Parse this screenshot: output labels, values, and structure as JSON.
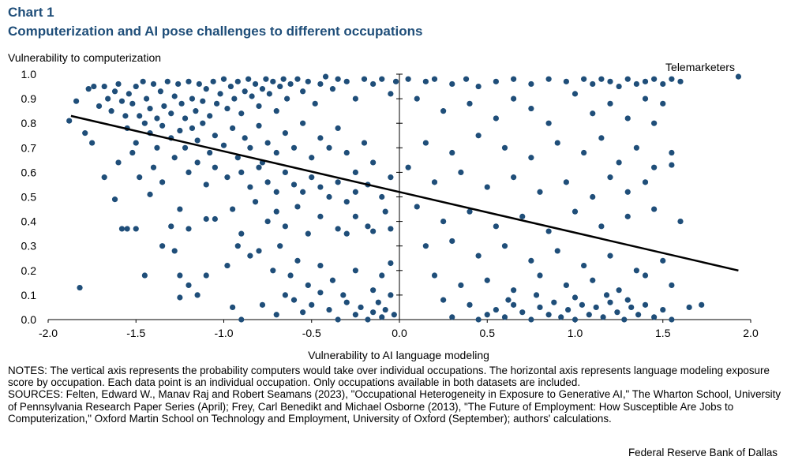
{
  "header": {
    "chart_number": "Chart 1",
    "title": "Computerization and AI pose challenges to different occupations"
  },
  "chart_data": {
    "type": "scatter",
    "ylabel": "Vulnerability  to computerization",
    "xlabel": "Vulnerability  to AI language modeling",
    "xlim": [
      -2.0,
      2.0
    ],
    "ylim": [
      0.0,
      1.0
    ],
    "xticks": [
      "-2.0",
      "-1.5",
      "-1.0",
      "-0.5",
      "0.0",
      "0.5",
      "1.0",
      "1.5",
      "2.0"
    ],
    "yticks": [
      "0.0",
      "0.1",
      "0.2",
      "0.3",
      "0.4",
      "0.5",
      "0.6",
      "0.7",
      "0.8",
      "0.9",
      "1.0"
    ],
    "annotation": {
      "label": "Telemarketers",
      "x": 1.93,
      "y": 0.99
    },
    "trendline": {
      "x": [
        -1.87,
        1.93
      ],
      "y": [
        0.83,
        0.2
      ]
    },
    "point_color": "#1f4e79",
    "points": [
      [
        -1.88,
        0.81
      ],
      [
        -1.84,
        0.89
      ],
      [
        -1.79,
        0.76
      ],
      [
        -1.77,
        0.94
      ],
      [
        -1.74,
        0.95
      ],
      [
        -1.71,
        0.87
      ],
      [
        -1.68,
        0.95
      ],
      [
        -1.66,
        0.9
      ],
      [
        -1.64,
        0.85
      ],
      [
        -1.62,
        0.93
      ],
      [
        -1.6,
        0.96
      ],
      [
        -1.58,
        0.89
      ],
      [
        -1.56,
        0.83
      ],
      [
        -1.54,
        0.92
      ],
      [
        -1.52,
        0.88
      ],
      [
        -1.5,
        0.95
      ],
      [
        -1.48,
        0.83
      ],
      [
        -1.46,
        0.97
      ],
      [
        -1.44,
        0.9
      ],
      [
        -1.42,
        0.86
      ],
      [
        -1.4,
        0.96
      ],
      [
        -1.38,
        0.82
      ],
      [
        -1.36,
        0.93
      ],
      [
        -1.34,
        0.87
      ],
      [
        -1.32,
        0.97
      ],
      [
        -1.3,
        0.84
      ],
      [
        -1.28,
        0.91
      ],
      [
        -1.26,
        0.96
      ],
      [
        -1.24,
        0.88
      ],
      [
        -1.22,
        0.82
      ],
      [
        -1.2,
        0.97
      ],
      [
        -1.18,
        0.9
      ],
      [
        -1.16,
        0.85
      ],
      [
        -1.14,
        0.96
      ],
      [
        -1.12,
        0.89
      ],
      [
        -1.1,
        0.94
      ],
      [
        -1.08,
        0.83
      ],
      [
        -1.06,
        0.97
      ],
      [
        -1.04,
        0.88
      ],
      [
        -1.02,
        0.92
      ],
      [
        -1.0,
        0.98
      ],
      [
        -0.98,
        0.86
      ],
      [
        -0.96,
        0.95
      ],
      [
        -0.94,
        0.9
      ],
      [
        -0.92,
        0.97
      ],
      [
        -0.9,
        0.84
      ],
      [
        -0.88,
        0.93
      ],
      [
        -0.86,
        0.98
      ],
      [
        -0.84,
        0.91
      ],
      [
        -0.82,
        0.96
      ],
      [
        -0.8,
        0.87
      ],
      [
        -0.78,
        0.94
      ],
      [
        -0.76,
        0.98
      ],
      [
        -0.74,
        0.92
      ],
      [
        -0.72,
        0.97
      ],
      [
        -0.7,
        0.85
      ],
      [
        -0.68,
        0.95
      ],
      [
        -0.66,
        0.98
      ],
      [
        -0.64,
        0.9
      ],
      [
        -0.62,
        0.96
      ],
      [
        -0.58,
        0.98
      ],
      [
        -0.55,
        0.93
      ],
      [
        -0.52,
        0.97
      ],
      [
        -0.48,
        0.88
      ],
      [
        -0.45,
        0.96
      ],
      [
        -0.42,
        0.99
      ],
      [
        -0.38,
        0.94
      ],
      [
        -0.35,
        0.98
      ],
      [
        -0.3,
        0.97
      ],
      [
        -0.25,
        0.9
      ],
      [
        -0.2,
        0.98
      ],
      [
        -0.15,
        0.96
      ],
      [
        -0.1,
        0.98
      ],
      [
        -0.05,
        0.92
      ],
      [
        -0.02,
        0.97
      ],
      [
        -1.55,
        0.78
      ],
      [
        -1.5,
        0.72
      ],
      [
        -1.45,
        0.8
      ],
      [
        -1.42,
        0.76
      ],
      [
        -1.38,
        0.7
      ],
      [
        -1.35,
        0.79
      ],
      [
        -1.3,
        0.74
      ],
      [
        -1.25,
        0.77
      ],
      [
        -1.22,
        0.7
      ],
      [
        -1.18,
        0.78
      ],
      [
        -1.15,
        0.73
      ],
      [
        -1.12,
        0.8
      ],
      [
        -1.08,
        0.68
      ],
      [
        -1.05,
        0.75
      ],
      [
        -1.0,
        0.71
      ],
      [
        -0.95,
        0.78
      ],
      [
        -0.92,
        0.66
      ],
      [
        -0.88,
        0.74
      ],
      [
        -0.85,
        0.7
      ],
      [
        -0.8,
        0.79
      ],
      [
        -0.78,
        0.64
      ],
      [
        -0.75,
        0.72
      ],
      [
        -0.7,
        0.68
      ],
      [
        -0.65,
        0.76
      ],
      [
        -0.6,
        0.7
      ],
      [
        -0.55,
        0.8
      ],
      [
        -0.5,
        0.66
      ],
      [
        -0.45,
        0.74
      ],
      [
        -0.4,
        0.7
      ],
      [
        -0.35,
        0.78
      ],
      [
        -0.3,
        0.68
      ],
      [
        -0.25,
        0.6
      ],
      [
        -0.2,
        0.72
      ],
      [
        -0.15,
        0.64
      ],
      [
        -1.75,
        0.72
      ],
      [
        -1.68,
        0.58
      ],
      [
        -1.6,
        0.64
      ],
      [
        -1.52,
        0.68
      ],
      [
        -1.48,
        0.58
      ],
      [
        -1.4,
        0.62
      ],
      [
        -1.35,
        0.56
      ],
      [
        -1.28,
        0.66
      ],
      [
        -1.2,
        0.6
      ],
      [
        -1.15,
        0.64
      ],
      [
        -1.1,
        0.55
      ],
      [
        -1.05,
        0.62
      ],
      [
        -0.98,
        0.58
      ],
      [
        -0.9,
        0.6
      ],
      [
        -0.85,
        0.54
      ],
      [
        -0.8,
        0.62
      ],
      [
        -0.75,
        0.56
      ],
      [
        -0.7,
        0.52
      ],
      [
        -0.65,
        0.6
      ],
      [
        -0.6,
        0.55
      ],
      [
        -0.55,
        0.52
      ],
      [
        -0.5,
        0.58
      ],
      [
        -0.45,
        0.54
      ],
      [
        -0.4,
        0.5
      ],
      [
        -0.35,
        0.56
      ],
      [
        -0.3,
        0.48
      ],
      [
        -0.25,
        0.52
      ],
      [
        -0.18,
        0.55
      ],
      [
        -0.1,
        0.5
      ],
      [
        -0.05,
        0.58
      ],
      [
        -1.62,
        0.49
      ],
      [
        -1.58,
        0.37
      ],
      [
        -1.55,
        0.37
      ],
      [
        -1.5,
        0.37
      ],
      [
        -1.42,
        0.51
      ],
      [
        -1.3,
        0.38
      ],
      [
        -1.25,
        0.45
      ],
      [
        -1.2,
        0.37
      ],
      [
        -1.1,
        0.41
      ],
      [
        -1.05,
        0.41
      ],
      [
        -0.95,
        0.45
      ],
      [
        -0.9,
        0.35
      ],
      [
        -0.82,
        0.48
      ],
      [
        -0.75,
        0.4
      ],
      [
        -0.7,
        0.44
      ],
      [
        -0.65,
        0.38
      ],
      [
        -0.58,
        0.46
      ],
      [
        -0.52,
        0.35
      ],
      [
        -0.45,
        0.42
      ],
      [
        -0.35,
        0.37
      ],
      [
        -0.3,
        0.35
      ],
      [
        -0.25,
        0.42
      ],
      [
        -0.18,
        0.38
      ],
      [
        -0.15,
        0.36
      ],
      [
        -0.08,
        0.44
      ],
      [
        -0.05,
        0.37
      ],
      [
        -1.82,
        0.13
      ],
      [
        -1.45,
        0.18
      ],
      [
        -1.35,
        0.3
      ],
      [
        -1.28,
        0.28
      ],
      [
        -1.25,
        0.18
      ],
      [
        -1.2,
        0.14
      ],
      [
        -1.15,
        0.1
      ],
      [
        -1.1,
        0.18
      ],
      [
        -0.98,
        0.22
      ],
      [
        -0.92,
        0.3
      ],
      [
        -0.85,
        0.26
      ],
      [
        -0.8,
        0.28
      ],
      [
        -0.72,
        0.2
      ],
      [
        -0.68,
        0.3
      ],
      [
        -0.62,
        0.18
      ],
      [
        -0.58,
        0.24
      ],
      [
        -0.52,
        0.14
      ],
      [
        -0.45,
        0.22
      ],
      [
        -0.38,
        0.16
      ],
      [
        -0.32,
        0.1
      ],
      [
        -0.25,
        0.2
      ],
      [
        -0.15,
        0.12
      ],
      [
        -0.1,
        0.18
      ],
      [
        -0.05,
        0.23
      ],
      [
        -1.25,
        0.09
      ],
      [
        -0.95,
        0.05
      ],
      [
        -0.9,
        0.0
      ],
      [
        -0.78,
        0.06
      ],
      [
        -0.7,
        0.02
      ],
      [
        -0.65,
        0.1
      ],
      [
        -0.6,
        0.08
      ],
      [
        -0.55,
        0.03
      ],
      [
        -0.5,
        0.06
      ],
      [
        -0.45,
        0.11
      ],
      [
        -0.4,
        0.04
      ],
      [
        -0.35,
        0.0
      ],
      [
        -0.3,
        0.07
      ],
      [
        -0.25,
        0.02
      ],
      [
        -0.22,
        0.05
      ],
      [
        -0.18,
        0.0
      ],
      [
        -0.15,
        0.03
      ],
      [
        -0.12,
        0.07
      ],
      [
        -0.1,
        0.01
      ],
      [
        -0.08,
        0.04
      ],
      [
        -0.05,
        0.1
      ],
      [
        -0.03,
        0.02
      ],
      [
        0.05,
        0.98
      ],
      [
        0.15,
        0.97
      ],
      [
        0.2,
        0.98
      ],
      [
        0.3,
        0.96
      ],
      [
        0.38,
        0.98
      ],
      [
        0.45,
        0.95
      ],
      [
        0.55,
        0.97
      ],
      [
        0.65,
        0.98
      ],
      [
        0.75,
        0.96
      ],
      [
        0.85,
        0.98
      ],
      [
        0.95,
        0.97
      ],
      [
        1.05,
        0.98
      ],
      [
        1.1,
        0.96
      ],
      [
        1.15,
        0.98
      ],
      [
        1.2,
        0.97
      ],
      [
        1.25,
        0.95
      ],
      [
        1.3,
        0.98
      ],
      [
        1.35,
        0.96
      ],
      [
        1.4,
        0.97
      ],
      [
        1.45,
        0.98
      ],
      [
        1.5,
        0.96
      ],
      [
        1.55,
        0.98
      ],
      [
        1.6,
        0.97
      ],
      [
        0.1,
        0.9
      ],
      [
        0.25,
        0.85
      ],
      [
        0.4,
        0.88
      ],
      [
        0.55,
        0.82
      ],
      [
        0.65,
        0.9
      ],
      [
        0.75,
        0.86
      ],
      [
        0.85,
        0.8
      ],
      [
        1.0,
        0.92
      ],
      [
        1.1,
        0.84
      ],
      [
        1.2,
        0.88
      ],
      [
        1.3,
        0.82
      ],
      [
        1.4,
        0.9
      ],
      [
        1.45,
        0.8
      ],
      [
        1.5,
        0.88
      ],
      [
        0.15,
        0.72
      ],
      [
        0.3,
        0.68
      ],
      [
        0.45,
        0.75
      ],
      [
        0.6,
        0.7
      ],
      [
        0.75,
        0.66
      ],
      [
        0.9,
        0.72
      ],
      [
        1.05,
        0.68
      ],
      [
        1.15,
        0.74
      ],
      [
        1.25,
        0.64
      ],
      [
        1.35,
        0.7
      ],
      [
        1.45,
        0.62
      ],
      [
        1.55,
        0.68
      ],
      [
        0.05,
        0.62
      ],
      [
        0.2,
        0.56
      ],
      [
        0.35,
        0.6
      ],
      [
        0.5,
        0.54
      ],
      [
        0.65,
        0.58
      ],
      [
        0.8,
        0.52
      ],
      [
        0.95,
        0.56
      ],
      [
        1.1,
        0.5
      ],
      [
        1.2,
        0.58
      ],
      [
        1.3,
        0.52
      ],
      [
        1.4,
        0.56
      ],
      [
        1.55,
        0.63
      ],
      [
        0.1,
        0.46
      ],
      [
        0.25,
        0.4
      ],
      [
        0.4,
        0.44
      ],
      [
        0.55,
        0.38
      ],
      [
        0.7,
        0.42
      ],
      [
        0.85,
        0.36
      ],
      [
        1.0,
        0.44
      ],
      [
        1.15,
        0.38
      ],
      [
        1.3,
        0.42
      ],
      [
        1.45,
        0.45
      ],
      [
        1.6,
        0.4
      ],
      [
        0.15,
        0.3
      ],
      [
        0.3,
        0.32
      ],
      [
        0.45,
        0.26
      ],
      [
        0.6,
        0.3
      ],
      [
        0.75,
        0.24
      ],
      [
        0.9,
        0.28
      ],
      [
        1.05,
        0.22
      ],
      [
        1.2,
        0.26
      ],
      [
        1.35,
        0.2
      ],
      [
        1.5,
        0.24
      ],
      [
        0.2,
        0.18
      ],
      [
        0.35,
        0.14
      ],
      [
        0.5,
        0.16
      ],
      [
        0.65,
        0.12
      ],
      [
        0.8,
        0.18
      ],
      [
        0.95,
        0.14
      ],
      [
        1.1,
        0.16
      ],
      [
        1.25,
        0.12
      ],
      [
        1.4,
        0.18
      ],
      [
        1.55,
        0.14
      ],
      [
        0.25,
        0.08
      ],
      [
        0.4,
        0.06
      ],
      [
        0.5,
        0.02
      ],
      [
        0.55,
        0.04
      ],
      [
        0.6,
        0.01
      ],
      [
        0.65,
        0.06
      ],
      [
        0.7,
        0.03
      ],
      [
        0.75,
        0.0
      ],
      [
        0.8,
        0.05
      ],
      [
        0.85,
        0.02
      ],
      [
        0.88,
        0.07
      ],
      [
        0.92,
        0.01
      ],
      [
        0.96,
        0.04
      ],
      [
        1.0,
        0.0
      ],
      [
        1.04,
        0.06
      ],
      [
        1.08,
        0.02
      ],
      [
        1.12,
        0.05
      ],
      [
        1.16,
        0.01
      ],
      [
        1.2,
        0.07
      ],
      [
        1.24,
        0.03
      ],
      [
        1.28,
        0.0
      ],
      [
        1.32,
        0.05
      ],
      [
        1.36,
        0.02
      ],
      [
        1.4,
        0.06
      ],
      [
        1.45,
        0.01
      ],
      [
        1.5,
        0.04
      ],
      [
        1.55,
        0.0
      ],
      [
        1.65,
        0.05
      ],
      [
        1.72,
        0.06
      ],
      [
        0.3,
        0.01
      ],
      [
        0.45,
        0.0
      ],
      [
        0.62,
        0.08
      ],
      [
        0.78,
        0.1
      ],
      [
        1.0,
        0.09
      ],
      [
        1.18,
        0.1
      ],
      [
        1.3,
        0.08
      ]
    ]
  },
  "notes": {
    "notes_text": "NOTES: The vertical axis represents the probability computers would take over individual occupations. The horizontal axis represents language modeling exposure score by occupation. Each data point is an individual occupation. Only occupations available in both datasets are included.",
    "sources_text": "SOURCES: Felten, Edward W., Manav  Raj and Robert Seamans (2023), \"Occupational Heterogeneity in Exposure to Generative AI,\" The Wharton School, University of Pennsylvania Research Paper Series (April); Frey, Carl Benedikt and Michael Osborne (2013), \"The Future of Employment: How Susceptible Are Jobs to Computerization,\" Oxford Martin School on Technology and Employment, University of Oxford (September); authors' calculations."
  },
  "footer": {
    "credit": "Federal Reserve Bank of Dallas"
  }
}
